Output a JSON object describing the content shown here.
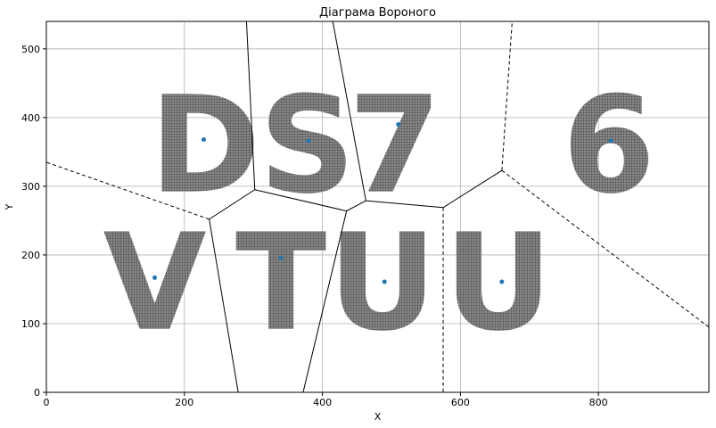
{
  "chart_data": {
    "type": "scatter",
    "title": "Діаграма Вороного",
    "xlabel": "X",
    "ylabel": "Y",
    "xlim": [
      0,
      960
    ],
    "ylim": [
      0,
      540
    ],
    "grid": true,
    "xticks": [
      0,
      200,
      400,
      600,
      800
    ],
    "yticks": [
      0,
      100,
      200,
      300,
      400,
      500
    ],
    "point_color": "#1f77b4",
    "glyph_color": "#555555",
    "points": [
      {
        "x": 228,
        "y": 368
      },
      {
        "x": 380,
        "y": 366
      },
      {
        "x": 510,
        "y": 390
      },
      {
        "x": 818,
        "y": 366
      },
      {
        "x": 157,
        "y": 167
      },
      {
        "x": 340,
        "y": 196
      },
      {
        "x": 490,
        "y": 161
      },
      {
        "x": 660,
        "y": 161
      }
    ],
    "voronoi_edges": [
      {
        "from": [
          290,
          540
        ],
        "to": [
          302,
          295
        ],
        "style": "solid"
      },
      {
        "from": [
          302,
          295
        ],
        "to": [
          236,
          252
        ],
        "style": "solid"
      },
      {
        "from": [
          236,
          252
        ],
        "to": [
          0,
          335
        ],
        "style": "dashed"
      },
      {
        "from": [
          236,
          252
        ],
        "to": [
          278,
          0
        ],
        "style": "solid"
      },
      {
        "from": [
          302,
          295
        ],
        "to": [
          435,
          264
        ],
        "style": "solid"
      },
      {
        "from": [
          435,
          264
        ],
        "to": [
          463,
          279
        ],
        "style": "solid"
      },
      {
        "from": [
          463,
          279
        ],
        "to": [
          415,
          540
        ],
        "style": "solid"
      },
      {
        "from": [
          435,
          264
        ],
        "to": [
          372,
          0
        ],
        "style": "solid"
      },
      {
        "from": [
          463,
          279
        ],
        "to": [
          575,
          269
        ],
        "style": "solid"
      },
      {
        "from": [
          575,
          269
        ],
        "to": [
          575,
          0
        ],
        "style": "dashed"
      },
      {
        "from": [
          575,
          269
        ],
        "to": [
          660,
          323
        ],
        "style": "solid"
      },
      {
        "from": [
          660,
          323
        ],
        "to": [
          675,
          540
        ],
        "style": "dashed"
      },
      {
        "from": [
          660,
          323
        ],
        "to": [
          960,
          95
        ],
        "style": "dashed"
      }
    ],
    "glyphs": [
      {
        "char": "D",
        "x": 230,
        "y": 360
      },
      {
        "char": "S",
        "x": 378,
        "y": 360
      },
      {
        "char": "7",
        "x": 505,
        "y": 360
      },
      {
        "char": "6",
        "x": 815,
        "y": 360
      },
      {
        "char": "V",
        "x": 157,
        "y": 160
      },
      {
        "char": "T",
        "x": 340,
        "y": 160
      },
      {
        "char": "U",
        "x": 487,
        "y": 160
      },
      {
        "char": "U",
        "x": 655,
        "y": 160
      }
    ]
  }
}
